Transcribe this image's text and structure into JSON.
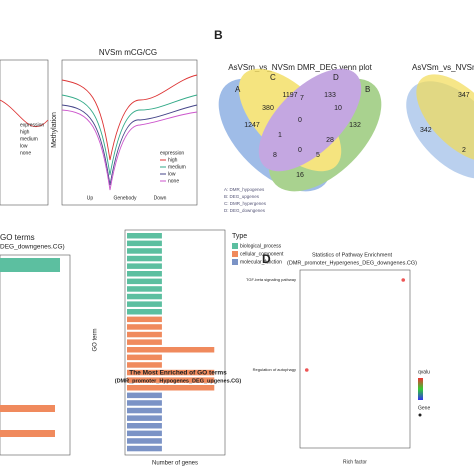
{
  "panel_a": {
    "left_legend": {
      "title": "expression",
      "items": [
        "high",
        "medium",
        "low",
        "none"
      ]
    },
    "title": "NVSm mCG/CG",
    "ylabel": "Methylation",
    "legend": {
      "title": "expression",
      "items": [
        "high",
        "medium",
        "low",
        "none"
      ]
    },
    "xlabels": [
      "Up",
      "Genebody",
      "Down"
    ]
  },
  "panel_b": {
    "label": "B",
    "title": "AsVSm_vs_NVSm DMR_DEG venn plot",
    "sets": [
      "A",
      "B",
      "C",
      "D"
    ],
    "regions": [
      1247,
      1197,
      133,
      132,
      380,
      7,
      10,
      16,
      1,
      0,
      8,
      0,
      5,
      28
    ],
    "legend": [
      "A: DMR_hypogenes",
      "B: DEG_upgenes",
      "C: DMR_hypergenes",
      "D: DEG_downgenes"
    ],
    "right_title": "AsVSm_vs_NVSm",
    "right_regions": [
      342,
      347,
      2
    ]
  },
  "panel_c": {
    "left_title": "GO terms",
    "left_subtitle": "DEG_downgenes.CG)",
    "title": "The Most Enriched of GO terms",
    "subtitle": "(DMR_promoter_Hypogenes_DEG_upgenes.CG)",
    "ylabel": "GO term",
    "xlabel": "Number of genes",
    "legend_title": "Type",
    "xlim": [
      0,
      11
    ],
    "groups": [
      {
        "name": "biological_process",
        "color": "#5cbfa0",
        "values": [
          4,
          4,
          4,
          4,
          4,
          4,
          4,
          4,
          4,
          4,
          4
        ]
      },
      {
        "name": "cellular_component",
        "color": "#f08a5d",
        "values": [
          4,
          4,
          4,
          4,
          10,
          4,
          4,
          10,
          10,
          10
        ]
      },
      {
        "name": "molecular_function",
        "color": "#7b93c6",
        "values": [
          4,
          4,
          4,
          4,
          4,
          4,
          4,
          4
        ]
      }
    ]
  },
  "panel_d": {
    "label": "D",
    "title": "Statistics of Pathway Enrichment",
    "subtitle": "(DMR_promoter_Hypergenes_DEG_downgenes.CG)",
    "xlabel": "Rich factor",
    "legend_q": "qvalue",
    "legend_n": "Gene_number",
    "xlim": [
      0,
      0.065
    ],
    "points": [
      {
        "label": "TGF-beta signaling pathway",
        "rich_factor": 0.061
      },
      {
        "label": "Regulation of autophagy",
        "rich_factor": 0.004
      }
    ]
  }
}
